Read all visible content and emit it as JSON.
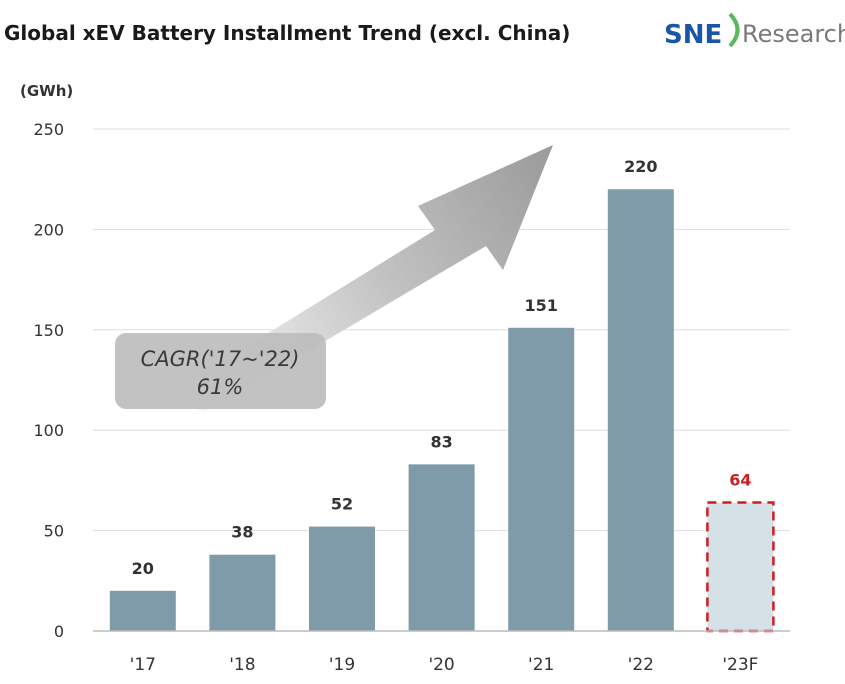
{
  "colors": {
    "bar": "#7f9aa9",
    "forecast_fill": "#d6e0e7",
    "forecast_border": "#cc1f1f",
    "grid": "#dddddd",
    "arrow": "#9a9a9a",
    "logo_blue": "#1a55a8",
    "logo_green": "#5cb85c"
  },
  "logo": {
    "brand": "SNE",
    "suffix": "Research"
  },
  "chart_data": {
    "type": "bar",
    "title": "Global xEV Battery Installment Trend (excl. China)",
    "unit_label": "(GWh)",
    "categories": [
      "'17",
      "'18",
      "'19",
      "'20",
      "'21",
      "'22",
      "'23F"
    ],
    "values": [
      20,
      38,
      52,
      83,
      151,
      220,
      64
    ],
    "data_labels": [
      "20",
      "38",
      "52",
      "83",
      "151",
      "220",
      "64"
    ],
    "forecast_index": 6,
    "ylim": [
      0,
      250
    ],
    "yticks": [
      0,
      50,
      100,
      150,
      200,
      250
    ],
    "ytick_labels": [
      "0",
      "50",
      "100",
      "150",
      "200",
      "250"
    ],
    "grid": true,
    "annotation": {
      "line1": "CAGR('17~'22)",
      "line2": "61%"
    }
  }
}
